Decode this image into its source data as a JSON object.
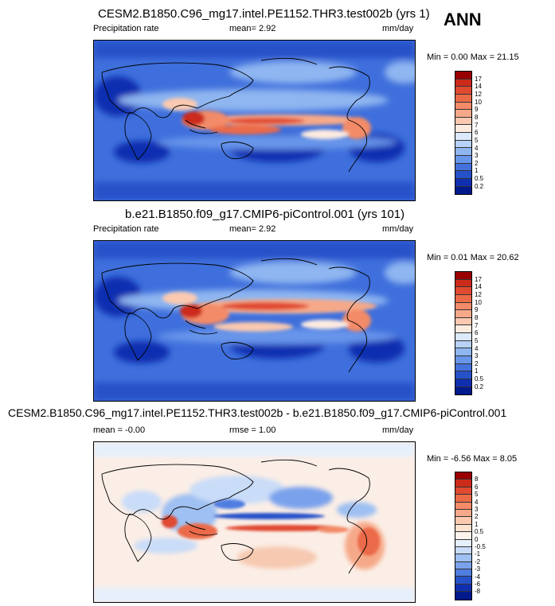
{
  "season": "ANN",
  "panels": [
    {
      "title": "CESM2.B1850.C96_mg17.intel.PE1152.THR3.test002b (yrs 1)",
      "left_label": "Precipitation rate",
      "center_label": "mean=   2.92",
      "units": "mm/day",
      "minmax": "Min =   0.00 Max =  21.15",
      "colorbar": {
        "labels": [
          "17",
          "14",
          "12",
          "10",
          "9",
          "8",
          "7",
          "6",
          "5",
          "4",
          "3",
          "2",
          "1",
          "0.5",
          "0.2"
        ],
        "colors": [
          "#990000",
          "#cc2a1a",
          "#e04a30",
          "#eb6a48",
          "#f38b68",
          "#f6a989",
          "#fac9b0",
          "#fdebe0",
          "#dbe9fb",
          "#b7d2f6",
          "#8fb6f0",
          "#6795ea",
          "#4472dd",
          "#2551c9",
          "#0f2fb0",
          "#001a8c"
        ]
      }
    },
    {
      "title": "b.e21.B1850.f09_g17.CMIP6-piControl.001 (yrs 101)",
      "left_label": "Precipitation rate",
      "center_label": "mean=   2.92",
      "units": "mm/day",
      "minmax": "Min =   0.01 Max =  20.62",
      "colorbar": {
        "labels": [
          "17",
          "14",
          "12",
          "10",
          "9",
          "8",
          "7",
          "6",
          "5",
          "4",
          "3",
          "2",
          "1",
          "0.5",
          "0.2"
        ],
        "colors": [
          "#990000",
          "#cc2a1a",
          "#e04a30",
          "#eb6a48",
          "#f38b68",
          "#f6a989",
          "#fac9b0",
          "#fdebe0",
          "#dbe9fb",
          "#b7d2f6",
          "#8fb6f0",
          "#6795ea",
          "#4472dd",
          "#2551c9",
          "#0f2fb0",
          "#001a8c"
        ]
      }
    },
    {
      "title": "CESM2.B1850.C96_mg17.intel.PE1152.THR3.test002b - b.e21.B1850.f09_g17.CMIP6-piControl.001",
      "left_label": "mean =  -0.00",
      "center_label": "rmse =   1.00",
      "units": "mm/day",
      "minmax": "Min =  -6.56 Max =   8.05",
      "colorbar": {
        "labels": [
          "8",
          "6",
          "5",
          "4",
          "3",
          "2",
          "1",
          "0.5",
          "0",
          "-0.5",
          "-1",
          "-2",
          "-3",
          "-4",
          "-6",
          "-8"
        ],
        "colors": [
          "#990000",
          "#cc2a1a",
          "#e04a30",
          "#eb6a48",
          "#f38b68",
          "#f6a989",
          "#fac9b0",
          "#fde3d2",
          "#fdf3ec",
          "#e6f0fc",
          "#c9dcf8",
          "#9fc0f2",
          "#7aa2ec",
          "#4f7de0",
          "#2551c9",
          "#0f2fb0",
          "#001a8c"
        ]
      }
    }
  ]
}
